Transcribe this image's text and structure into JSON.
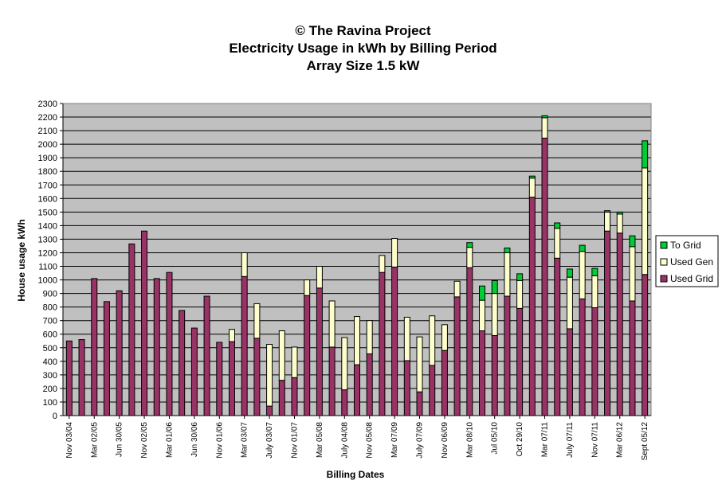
{
  "colors": {
    "plot_background": "#c0c0c0",
    "used_grid": "#993366",
    "used_gen": "#ffffcc",
    "to_grid": "#00cc33"
  },
  "chart_data": {
    "type": "bar",
    "stacked": true,
    "title": [
      "© The Ravina Project",
      "Electricity Usage in kWh by Billing Period",
      "Array Size 1.5 kW"
    ],
    "xlabel": "Billing Dates",
    "ylabel": "House usage kWh",
    "ylim": [
      0,
      2300
    ],
    "ytick_step": 100,
    "grid": true,
    "legend_position": "right",
    "x_tick_labels": [
      "Nov 03/04",
      "Mar 02/05",
      "Jun 30/05",
      "Nov 02/05",
      "Mar 01/06",
      "Jun 30/06",
      "Nov 01/06",
      "Mar 03/07",
      "July 03/07",
      "Nov 01/07",
      "Mar 05/08",
      "July 04/08",
      "Nov 05/08",
      "Mar 07/09",
      "July 07/09",
      "Nov 06/09",
      "Mar 08/10",
      "Jul 05/10",
      "Oct 29/10",
      "Mar 07/11",
      "July 07/11",
      "Nov 07/11",
      "Mar 06/12",
      "Sept 05/12"
    ],
    "categories": [
      "Nov 03/04",
      "",
      "Mar 02/05",
      "",
      "Jun 30/05",
      "",
      "Nov 02/05",
      "",
      "Mar 01/06",
      "",
      "Jun 30/06",
      "",
      "Nov 01/06",
      "",
      "Mar 03/07",
      "",
      "July 03/07",
      "",
      "Nov 01/07",
      "",
      "Mar 05/08",
      "",
      "July 04/08",
      "",
      "Nov 05/08",
      "",
      "Mar 07/09",
      "",
      "July 07/09",
      "",
      "Nov 06/09",
      "",
      "Mar 08/10",
      "",
      "Jul 05/10",
      "",
      "Oct 29/10",
      "",
      "Mar 07/11",
      "",
      "July 07/11",
      "",
      "Nov 07/11",
      "",
      "Mar 06/12",
      "",
      "Sept 05/12"
    ],
    "series": [
      {
        "name": "Used Grid",
        "values": [
          550,
          560,
          1010,
          840,
          920,
          1265,
          1360,
          1010,
          1055,
          775,
          645,
          880,
          540,
          545,
          1025,
          570,
          70,
          260,
          280,
          885,
          940,
          505,
          190,
          375,
          455,
          1055,
          1095,
          405,
          175,
          370,
          480,
          875,
          1090,
          625,
          590,
          880,
          790,
          1610,
          2045,
          1160,
          640,
          860,
          795,
          1360,
          1345,
          845,
          1040
        ]
      },
      {
        "name": "Used Gen",
        "values": [
          0,
          0,
          0,
          0,
          0,
          0,
          0,
          0,
          0,
          0,
          0,
          0,
          0,
          90,
          175,
          255,
          455,
          365,
          225,
          115,
          160,
          340,
          385,
          355,
          245,
          125,
          210,
          320,
          405,
          365,
          190,
          115,
          150,
          225,
          310,
          320,
          205,
          140,
          150,
          220,
          380,
          350,
          235,
          140,
          140,
          400,
          785
        ]
      },
      {
        "name": "To Grid",
        "values": [
          0,
          0,
          0,
          0,
          0,
          0,
          0,
          0,
          0,
          0,
          0,
          0,
          0,
          0,
          0,
          0,
          0,
          0,
          0,
          0,
          0,
          0,
          0,
          0,
          0,
          0,
          0,
          0,
          0,
          0,
          0,
          0,
          35,
          105,
          95,
          35,
          50,
          15,
          15,
          40,
          60,
          45,
          55,
          10,
          15,
          80,
          200
        ]
      }
    ]
  }
}
